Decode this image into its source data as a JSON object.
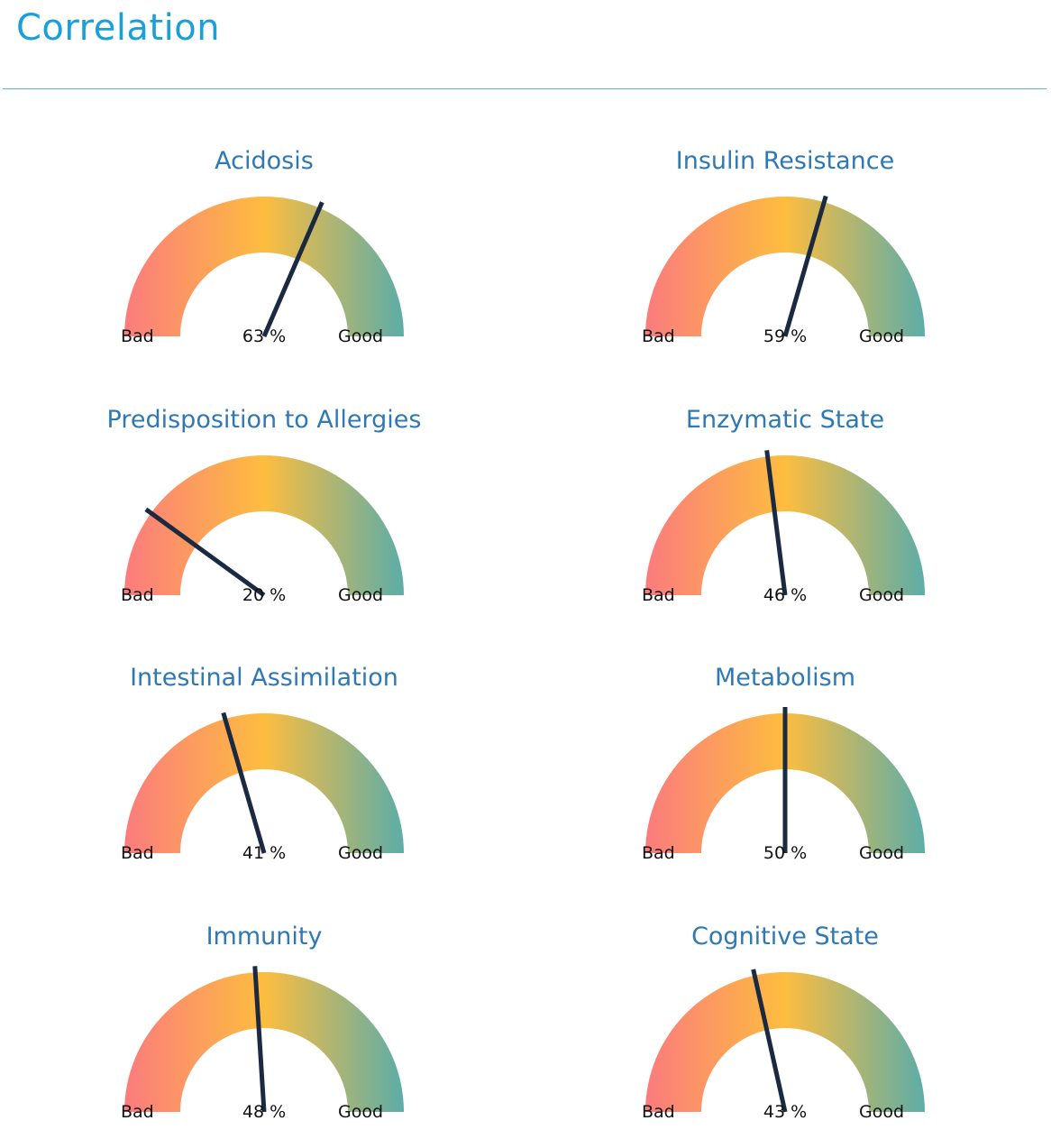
{
  "header": {
    "title": "Correlation"
  },
  "colors": {
    "title": "#1aa0d8",
    "rule": "#56b8d8",
    "gauge_title": "#2f78b4",
    "needle": "#1b2a41",
    "gradient": [
      "#fb7b7e",
      "#fdbd3f",
      "#5cada8"
    ]
  },
  "labels": {
    "bad": "Bad",
    "good": "Good"
  },
  "chart_data": [
    {
      "type": "gauge",
      "title": "Acidosis",
      "value": 63,
      "value_text": "63 %",
      "min": 0,
      "max": 100,
      "min_label": "Bad",
      "max_label": "Good"
    },
    {
      "type": "gauge",
      "title": "Insulin Resistance",
      "value": 59,
      "value_text": "59 %",
      "min": 0,
      "max": 100,
      "min_label": "Bad",
      "max_label": "Good"
    },
    {
      "type": "gauge",
      "title": "Predisposition to Allergies",
      "value": 20,
      "value_text": "20 %",
      "min": 0,
      "max": 100,
      "min_label": "Bad",
      "max_label": "Good"
    },
    {
      "type": "gauge",
      "title": "Enzymatic State",
      "value": 46,
      "value_text": "46 %",
      "min": 0,
      "max": 100,
      "min_label": "Bad",
      "max_label": "Good"
    },
    {
      "type": "gauge",
      "title": "Intestinal Assimilation",
      "value": 41,
      "value_text": "41 %",
      "min": 0,
      "max": 100,
      "min_label": "Bad",
      "max_label": "Good"
    },
    {
      "type": "gauge",
      "title": "Metabolism",
      "value": 50,
      "value_text": "50 %",
      "min": 0,
      "max": 100,
      "min_label": "Bad",
      "max_label": "Good"
    },
    {
      "type": "gauge",
      "title": "Immunity",
      "value": 48,
      "value_text": "48 %",
      "min": 0,
      "max": 100,
      "min_label": "Bad",
      "max_label": "Good"
    },
    {
      "type": "gauge",
      "title": "Cognitive State",
      "value": 43,
      "value_text": "43 %",
      "min": 0,
      "max": 100,
      "min_label": "Bad",
      "max_label": "Good"
    }
  ]
}
